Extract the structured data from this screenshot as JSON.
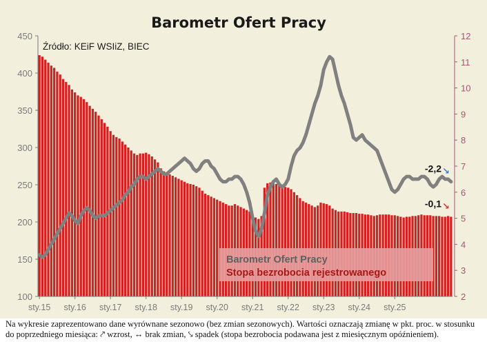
{
  "chart_data": {
    "type": "bar+line",
    "title": "Barometr Ofert Pracy",
    "source": "Źródło: KEiF WSIiZ, BIEC",
    "x_tick_labels": [
      "sty.15",
      "sty.16",
      "sty.17",
      "sty.18",
      "sty.19",
      "sty.20",
      "sty.21",
      "sty.22",
      "sty.23",
      "sty.24",
      "sty.25"
    ],
    "left_axis": {
      "ticks": [
        "100",
        "150",
        "200",
        "250",
        "300",
        "350",
        "400",
        "450"
      ],
      "ylim": [
        100,
        450
      ]
    },
    "right_axis": {
      "ticks": [
        "2",
        "3",
        "4",
        "5",
        "6",
        "7",
        "8",
        "9",
        "10",
        "11",
        "12"
      ],
      "ylim": [
        2,
        12
      ]
    },
    "grid": false,
    "legend_position": "bottom-right",
    "series": [
      {
        "name": "Barometr Ofert Pracy",
        "type": "bar",
        "axis": "left",
        "color": "#d42020",
        "values": [
          424,
          422,
          418,
          414,
          410,
          407,
          402,
          398,
          392,
          388,
          384,
          378,
          374,
          370,
          368,
          365,
          361,
          356,
          352,
          348,
          343,
          338,
          333,
          328,
          322,
          317,
          314,
          312,
          308,
          304,
          300,
          296,
          292,
          290,
          292,
          292,
          293,
          291,
          288,
          284,
          280,
          272,
          268,
          266,
          264,
          262,
          260,
          258,
          256,
          254,
          252,
          251,
          250,
          248,
          246,
          242,
          238,
          236,
          234,
          232,
          230,
          228,
          226,
          224,
          222,
          222,
          224,
          222,
          220,
          218,
          216,
          214,
          210,
          206,
          204,
          208,
          246,
          252,
          253,
          252,
          251,
          250,
          248,
          247,
          246,
          244,
          240,
          236,
          232,
          228,
          226,
          224,
          222,
          220,
          222,
          226,
          225,
          224,
          222,
          218,
          216,
          214,
          214,
          214,
          213,
          212,
          212,
          212,
          211,
          211,
          210,
          210,
          209,
          208,
          209,
          210,
          210,
          210,
          210,
          209,
          209,
          208,
          207,
          206,
          207,
          207,
          208,
          208,
          209,
          210,
          209,
          209,
          209,
          208,
          208,
          208,
          207,
          207,
          208,
          207
        ]
      },
      {
        "name": "Stopa bezrobocia rejestrowanego",
        "type": "line",
        "axis": "right",
        "color": "#808080",
        "values": [
          3.6,
          3.5,
          3.6,
          3.8,
          4.0,
          4.2,
          4.4,
          4.6,
          4.8,
          5.0,
          5.2,
          5.1,
          4.9,
          4.8,
          5.1,
          5.3,
          5.4,
          5.3,
          5.1,
          5.0,
          5.1,
          5.1,
          5.1,
          5.2,
          5.3,
          5.4,
          5.5,
          5.6,
          5.7,
          5.9,
          6.0,
          6.2,
          6.3,
          6.5,
          6.6,
          6.6,
          6.5,
          6.6,
          6.7,
          6.8,
          6.9,
          6.8,
          6.7,
          6.7,
          6.8,
          6.9,
          7.0,
          7.1,
          7.2,
          7.3,
          7.2,
          7.1,
          6.9,
          6.8,
          6.9,
          7.1,
          7.2,
          7.2,
          7.0,
          6.9,
          6.7,
          6.5,
          6.4,
          6.4,
          6.5,
          6.5,
          6.6,
          6.6,
          6.5,
          6.3,
          6.0,
          5.6,
          5.0,
          4.5,
          4.3,
          4.6,
          5.2,
          5.9,
          6.2,
          6.4,
          6.5,
          6.3,
          6.2,
          6.3,
          6.5,
          7.0,
          7.4,
          7.6,
          7.7,
          7.9,
          8.2,
          8.6,
          9.0,
          9.4,
          9.7,
          10.1,
          10.7,
          11.0,
          11.2,
          11.1,
          10.6,
          10.1,
          9.7,
          9.4,
          9.0,
          8.6,
          8.1,
          8.0,
          8.1,
          8.2,
          8.0,
          7.9,
          7.8,
          7.7,
          7.6,
          7.3,
          7.0,
          6.7,
          6.4,
          6.1,
          6.0,
          6.1,
          6.3,
          6.5,
          6.6,
          6.6,
          6.5,
          6.5,
          6.5,
          6.6,
          6.6,
          6.5,
          6.3,
          6.2,
          6.3,
          6.5,
          6.6,
          6.5,
          6.5,
          6.4
        ]
      }
    ],
    "annotations": [
      {
        "series": "Stopa bezrobocia rejestrowanego",
        "text": "-2,2",
        "arrow": "↘",
        "arrow_color": "#3b78d8"
      },
      {
        "series": "Barometr Ofert Pracy",
        "text": "-0,1",
        "arrow": "↘",
        "arrow_color": "#e03030"
      }
    ]
  },
  "caption": "Na wykresie zaprezentowano dane wyrównane sezonowo (bez zmian sezonowych). Wartości oznaczają zmianę w pkt. proc. w stosunku do poprzedniego miesiąca: ⤤ wzrost, ↔ brak zmian, ⤥ spadek (stopa bezrobocia podawana jest z miesięcznym opóźnieniem)."
}
